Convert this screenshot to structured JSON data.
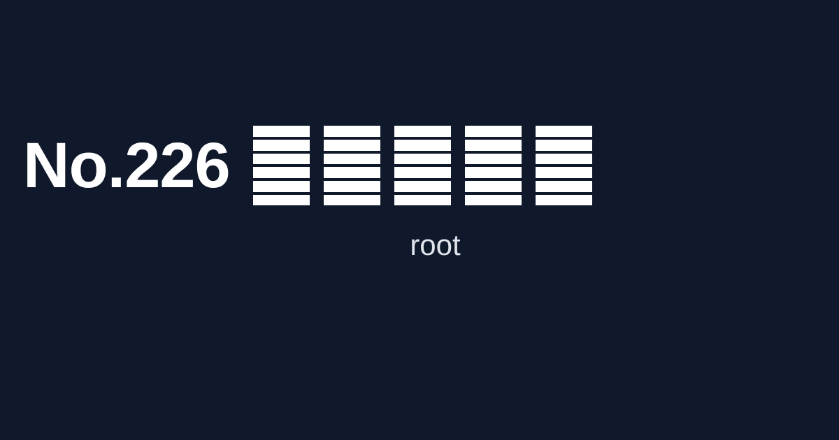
{
  "header": {
    "number_label": "No.226"
  },
  "glyph_row": {
    "count": 5,
    "glyph_icon": "six-bar-stack-icon"
  },
  "caption": {
    "text": "root"
  },
  "colors": {
    "background": "#10182b",
    "foreground": "#ffffff",
    "caption": "#dfe3ea"
  }
}
